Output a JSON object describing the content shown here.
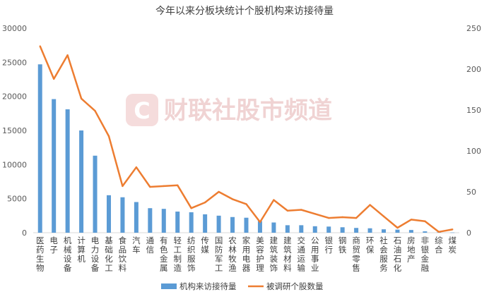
{
  "chart_data": {
    "type": "bar+line",
    "title": "今年以来分板块统计个股机构来访接待量",
    "categories": [
      "医药生物",
      "电子",
      "机械设备",
      "计算机",
      "电力设备",
      "基础化工",
      "食品饮料",
      "汽车",
      "通信",
      "有色金属",
      "轻工制造",
      "纺织服饰",
      "传媒",
      "国防军工",
      "农林牧渔",
      "家用电器",
      "美容护理",
      "建筑装饰",
      "建筑材料",
      "交通运输",
      "公用事业",
      "银行",
      "钢铁",
      "商贸零售",
      "环保",
      "社会服务",
      "石油石化",
      "房地产",
      "非银金融",
      "综合",
      "煤炭"
    ],
    "series": [
      {
        "name": "机构来访接待量",
        "type": "bar",
        "axis": "left",
        "color": "#5b9bd5",
        "values": [
          24700,
          19600,
          18100,
          15000,
          11300,
          5500,
          5200,
          4500,
          3600,
          3500,
          3100,
          3000,
          2700,
          2500,
          2300,
          2200,
          1700,
          1500,
          1100,
          1100,
          950,
          900,
          800,
          700,
          650,
          500,
          450,
          400,
          200,
          50,
          30
        ]
      },
      {
        "name": "被调研个股数量",
        "type": "line",
        "axis": "right",
        "color": "#ed7d31",
        "values": [
          228,
          188,
          217,
          164,
          149,
          118,
          57,
          80,
          56,
          57,
          58,
          30,
          37,
          50,
          41,
          35,
          13,
          40,
          27,
          28,
          23,
          18,
          19,
          18,
          34,
          20,
          6,
          16,
          14,
          1,
          4
        ]
      }
    ],
    "y_left": {
      "min": 0,
      "max": 30000,
      "ticks": [
        0,
        5000,
        10000,
        15000,
        20000,
        25000,
        30000
      ]
    },
    "y_right": {
      "min": 0,
      "max": 250,
      "ticks": [
        0,
        50,
        100,
        150,
        200,
        250
      ]
    },
    "legend_position": "bottom",
    "grid": false
  },
  "watermark": {
    "text": "财联社股市频道",
    "logo_letter": "C"
  }
}
